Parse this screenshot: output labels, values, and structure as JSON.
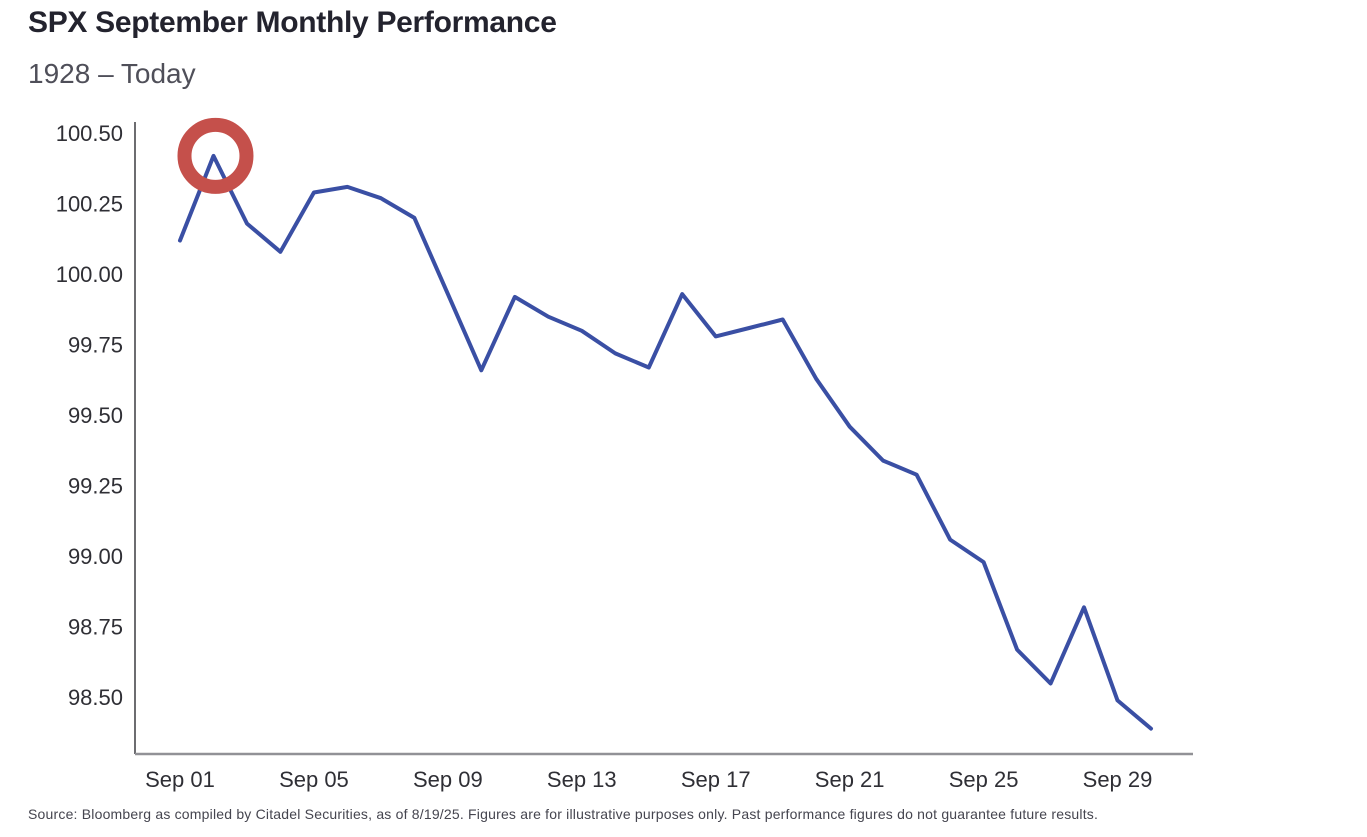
{
  "page": {
    "background": "#ffffff"
  },
  "header": {
    "title": "SPX September Monthly Performance",
    "subtitle": "1928 – Today"
  },
  "footer": {
    "source": "Source: Bloomberg as compiled by Citadel Securities, as of 8/19/25. Figures are for illustrative purposes only. Past performance figures do not guarantee future results."
  },
  "chart_data": {
    "type": "line",
    "title": "SPX September Monthly Performance",
    "subtitle": "1928 – Today",
    "x": [
      "Sep 01",
      "Sep 02",
      "Sep 03",
      "Sep 04",
      "Sep 05",
      "Sep 06",
      "Sep 07",
      "Sep 08",
      "Sep 09",
      "Sep 10",
      "Sep 11",
      "Sep 12",
      "Sep 13",
      "Sep 14",
      "Sep 15",
      "Sep 16",
      "Sep 17",
      "Sep 18",
      "Sep 19",
      "Sep 20",
      "Sep 21",
      "Sep 22",
      "Sep 23",
      "Sep 24",
      "Sep 25",
      "Sep 26",
      "Sep 27",
      "Sep 28",
      "Sep 29",
      "Sep 30"
    ],
    "values": [
      100.12,
      100.42,
      100.18,
      100.08,
      100.29,
      100.31,
      100.27,
      100.2,
      99.93,
      99.66,
      99.92,
      99.85,
      99.8,
      99.72,
      99.67,
      99.93,
      99.78,
      99.81,
      99.84,
      99.63,
      99.46,
      99.34,
      99.29,
      99.06,
      98.98,
      98.67,
      98.55,
      98.82,
      98.49,
      98.39
    ],
    "x_tick_indices": [
      0,
      4,
      8,
      12,
      16,
      20,
      24,
      28
    ],
    "x_tick_labels": [
      "Sep 01",
      "Sep 05",
      "Sep 09",
      "Sep 13",
      "Sep 17",
      "Sep 21",
      "Sep 25",
      "Sep 29"
    ],
    "y_ticks": [
      100.5,
      100.25,
      100.0,
      99.75,
      99.5,
      99.25,
      99.0,
      98.75,
      98.5
    ],
    "ylim": [
      98.3,
      100.54
    ],
    "grid": false,
    "legend": "none",
    "line_color": "#3a4fa4",
    "axis": {
      "y_color": "#48484c",
      "x_color": "#919196"
    },
    "annotation": {
      "shape": "circle",
      "label": "highlighted peak on Sep 02",
      "index": 1,
      "value": 100.42,
      "color": "#c5504b",
      "radius": 31,
      "stroke_width": 14
    }
  }
}
